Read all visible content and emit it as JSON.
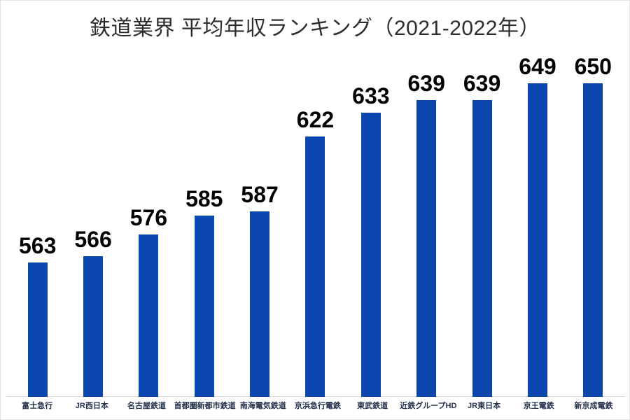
{
  "chart_data": {
    "type": "bar",
    "title": "鉄道業界 平均年収ランキング（2021-2022年）",
    "categories": [
      "富士急行",
      "JR西日本",
      "名古屋鉄道",
      "首都圏新都市鉄道",
      "南海電気鉄道",
      "京浜急行電鉄",
      "東武鉄道",
      "近鉄グループHD",
      "JR東日本",
      "京王電鉄",
      "新京成電鉄"
    ],
    "values": [
      563,
      566,
      576,
      585,
      587,
      622,
      633,
      639,
      639,
      649,
      650
    ],
    "xlabel": "",
    "ylabel": "",
    "ylim": [
      500,
      660
    ],
    "grid": false,
    "legend": false,
    "data_labels": true,
    "colors": {
      "bar": "#0c46af",
      "value_label": "#000000",
      "category_label": "#22304a",
      "axis_line": "#d9d9d9",
      "title": "#2d2d2d",
      "background": "#ffffff"
    }
  }
}
